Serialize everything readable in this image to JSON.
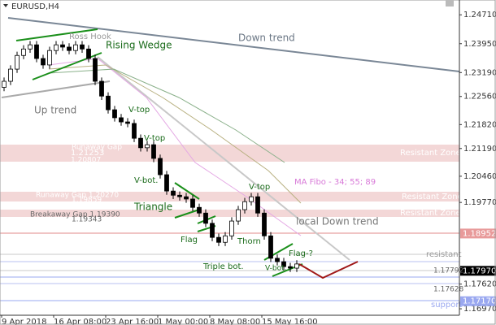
{
  "chart_data": {
    "type": "candlestick",
    "title": "EURUSD,H4",
    "open": [
      1.228,
      1.2296,
      1.2328,
      1.2364,
      1.2381,
      1.2392,
      1.2356,
      1.2339,
      1.2377,
      1.2392,
      1.2386,
      1.2377,
      1.2392,
      1.2381,
      1.2356,
      1.2296,
      1.2257,
      1.2221,
      1.22,
      1.2189,
      1.2185,
      1.2146,
      1.2121,
      1.2129,
      1.2093,
      1.205,
      1.2007,
      1.1996,
      1.1992,
      1.1986,
      1.1964,
      1.1949,
      1.1922,
      1.1885,
      1.1872,
      1.1889,
      1.1928,
      1.1958,
      1.1979,
      1.1992,
      1.1949,
      1.1889,
      1.183,
      1.1821,
      1.1808,
      1.1804
    ],
    "high": [
      1.2306,
      1.2338,
      1.2374,
      1.2391,
      1.2402,
      1.2402,
      1.2366,
      1.2387,
      1.2402,
      1.2402,
      1.2396,
      1.2402,
      1.2402,
      1.2391,
      1.2366,
      1.2306,
      1.2267,
      1.2231,
      1.221,
      1.2199,
      1.2195,
      1.2156,
      1.2139,
      1.2139,
      1.2103,
      1.206,
      1.2017,
      1.2006,
      1.2002,
      1.1996,
      1.1974,
      1.1959,
      1.1932,
      1.1895,
      1.1899,
      1.1938,
      1.1968,
      1.1989,
      1.2002,
      1.2002,
      1.1959,
      1.1899,
      1.184,
      1.1831,
      1.1818,
      1.1825
    ],
    "low": [
      1.227,
      1.2286,
      1.2318,
      1.2354,
      1.2371,
      1.2346,
      1.2329,
      1.2329,
      1.2367,
      1.2376,
      1.2367,
      1.2367,
      1.2371,
      1.2346,
      1.2286,
      1.2247,
      1.2211,
      1.219,
      1.2179,
      1.2175,
      1.2136,
      1.2111,
      1.2111,
      1.2083,
      1.204,
      1.1997,
      1.1986,
      1.1982,
      1.1976,
      1.1954,
      1.1939,
      1.1912,
      1.1875,
      1.1862,
      1.1862,
      1.1879,
      1.1918,
      1.1948,
      1.1969,
      1.1939,
      1.1879,
      1.182,
      1.1811,
      1.1798,
      1.1794,
      1.1794
    ],
    "close": [
      1.2296,
      1.2328,
      1.2364,
      1.2381,
      1.2392,
      1.2356,
      1.2339,
      1.2377,
      1.2392,
      1.2386,
      1.2377,
      1.2392,
      1.2381,
      1.2356,
      1.2296,
      1.2257,
      1.2221,
      1.22,
      1.2189,
      1.2185,
      1.2146,
      1.2121,
      1.2129,
      1.2093,
      1.205,
      1.2007,
      1.1996,
      1.1992,
      1.1986,
      1.1964,
      1.1949,
      1.1922,
      1.1885,
      1.1872,
      1.1889,
      1.1928,
      1.1958,
      1.1979,
      1.1992,
      1.1949,
      1.1889,
      1.183,
      1.1821,
      1.1808,
      1.1804,
      1.1815
    ],
    "x_labels": [
      "9 Apr 2018",
      "16 Apr 08:00",
      "23 Apr 16:00",
      "1 May 00:00",
      "8 May 08:00",
      "15 May 16:00"
    ],
    "ylim": [
      1.168,
      1.251
    ],
    "yticks": [
      {
        "value": 1.2471,
        "label": "1.24710"
      },
      {
        "value": 1.2395,
        "label": "1.23950"
      },
      {
        "value": 1.2319,
        "label": "1.23190"
      },
      {
        "value": 1.2256,
        "label": "1.22560"
      },
      {
        "value": 1.2182,
        "label": "1.21820"
      },
      {
        "value": 1.2119,
        "label": "1.21190"
      },
      {
        "value": 1.2046,
        "label": "1.20460"
      },
      {
        "value": 1.1977,
        "label": "1.19770"
      },
      {
        "value": 1.1762,
        "label": "1.17620"
      },
      {
        "value": 1.1697,
        "label": "1.16970"
      }
    ],
    "price_labels": [
      {
        "value": 1.18952,
        "label": "1.18952",
        "color": "#e89a9a"
      },
      {
        "value": 1.1797,
        "label": "1.17970",
        "color": "#000000"
      },
      {
        "value": 1.1717,
        "label": "1.17170",
        "color": "#9aa8f0"
      }
    ],
    "annotations": [
      "Down trend",
      "Rising Wedge",
      "Ross Hook",
      "Up trend",
      "V-top",
      "V-top",
      "V-bot.",
      "Runaway Gap",
      "1.21253",
      "1.20807",
      "Resistant Zone",
      "Runaway Gap 1.20270",
      "1.19859",
      "Resistant Zone",
      "Breakaway Gap 1.19390",
      "1.19343",
      "Resistant Zone",
      "MA Fibo - 34; 55; 89",
      "Triangle",
      "V-top",
      "local Down trend",
      "Flag",
      "Thorn",
      "Triple bot.",
      "Flag-?",
      "V-bot.",
      "resistant",
      "1.17792",
      "1.17628",
      "support"
    ]
  }
}
